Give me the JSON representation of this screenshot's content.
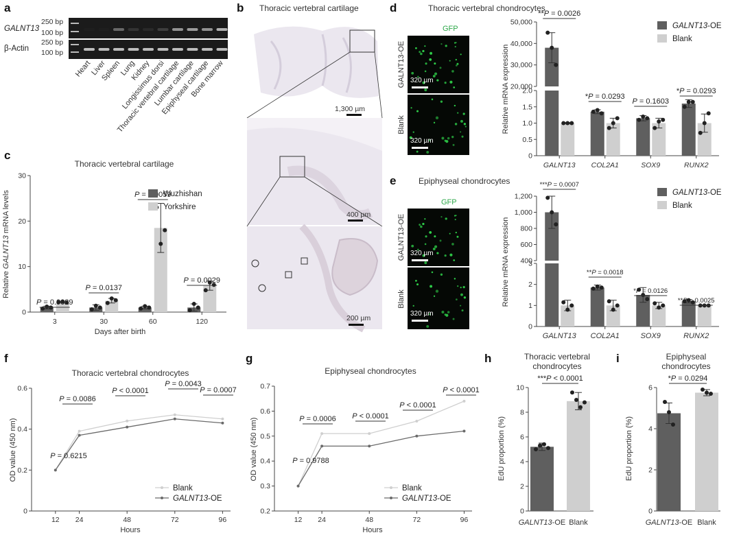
{
  "colors": {
    "dark": "#5f5f5f",
    "light": "#cfcfcf",
    "gfp": "#2fd24a"
  },
  "panel_a": {
    "label": "a",
    "gene_label": "GALNT13",
    "actin_label": "β-Actin",
    "bp_upper": "250 bp",
    "bp_lower": "100 bp",
    "tissues": [
      "Heart",
      "Liver",
      "Spleen",
      "Lung",
      "Kidney",
      "Longissimus dorsi",
      "Thoracic vertebral cartilage",
      "Lumbar cartilage",
      "Epiphyseal cartilage",
      "Bone marrow"
    ],
    "galnt13_intensity": [
      0,
      0,
      0.35,
      0.1,
      0.05,
      0.15,
      0.55,
      0.6,
      0.55,
      0.7
    ],
    "actin_intensity": [
      0.75,
      0.75,
      0.75,
      0.75,
      0.75,
      0.75,
      0.75,
      0.75,
      0.75,
      0.75
    ]
  },
  "panel_b": {
    "label": "b",
    "title": "Thoracic vertebral cartilage",
    "scale1": "1,300 µm",
    "scale2": "400 µm",
    "scale3": "200 µm"
  },
  "panel_d": {
    "label": "d",
    "title": "Thoracic vertebral chondrocytes",
    "gfp_label": "GFP",
    "row1": "GALNT13-OE",
    "row2": "Blank",
    "scale": "320 µm"
  },
  "panel_e": {
    "label": "e",
    "title": "Epiphyseal chondrocytes",
    "gfp_label": "GFP",
    "row1": "GALNT13-OE",
    "row2": "Blank",
    "scale": "320 µm"
  },
  "chart_data": [
    {
      "id": "c",
      "label": "c",
      "type": "bar",
      "title": "Thoracic vertebral cartilage",
      "xlabel": "Days after birth",
      "ylabel_pre": "Relative ",
      "ylabel_it": "GALNT13",
      "ylabel_post": " mRNA levels",
      "categories": [
        "3",
        "30",
        "60",
        "120"
      ],
      "ylim": [
        0,
        30
      ],
      "yticks": [
        0,
        10,
        20,
        30
      ],
      "series": [
        {
          "name": "Wuzhishan",
          "values": [
            1.0,
            1.0,
            1.0,
            1.0
          ],
          "err": [
            0.3,
            0.6,
            0.3,
            0.8
          ],
          "points": [
            [
              0.8,
              1.2,
              1.0
            ],
            [
              0.6,
              1.4,
              1.0
            ],
            [
              0.8,
              1.3,
              1.0
            ],
            [
              0.4,
              1.8,
              1.0
            ]
          ]
        },
        {
          "name": "Yorkshire",
          "values": [
            2.2,
            2.5,
            18.5,
            5.8
          ],
          "err": [
            0.2,
            0.5,
            5.4,
            1.0
          ],
          "points": [
            [
              2.2,
              2.3,
              2.1
            ],
            [
              2.0,
              3.0,
              2.6
            ],
            [
              23.0,
              15.0,
              18.0
            ],
            [
              4.8,
              6.5,
              6.0
            ]
          ]
        }
      ],
      "annotations": [
        "P = 0.0029",
        "P = 0.0137",
        "P = 0.0059",
        "P = 0.0029"
      ]
    },
    {
      "id": "d_chart",
      "type": "bar",
      "broken_axis": true,
      "ylabel": "Relative mRNA expression",
      "categories": [
        "GALNT13",
        "COL2A1",
        "SOX9",
        "RUNX2"
      ],
      "upper_ylim": [
        20000,
        50000
      ],
      "upper_yticks": [
        "20,000",
        "30,000",
        "40,000",
        "50,000"
      ],
      "lower_ylim": [
        0,
        2.0
      ],
      "lower_yticks": [
        "0",
        "0.5",
        "1.0",
        "1.5",
        "2.0"
      ],
      "series": [
        {
          "name": "GALNT13-OE",
          "values": [
            38000,
            1.35,
            1.15,
            1.6
          ],
          "err": [
            7000,
            0.06,
            0.08,
            0.12
          ],
          "points": [
            [
              45000,
              38000,
              30000
            ],
            [
              1.35,
              1.4,
              1.3
            ],
            [
              1.1,
              1.2,
              1.15
            ],
            [
              1.5,
              1.65,
              1.65
            ]
          ]
        },
        {
          "name": "Blank",
          "values": [
            1.0,
            1.0,
            1.0,
            1.0
          ],
          "err": [
            0.02,
            0.15,
            0.15,
            0.28
          ],
          "points": [
            [
              1.0,
              1.0,
              1.0
            ],
            [
              0.85,
              1.0,
              1.15
            ],
            [
              0.85,
              1.05,
              1.1
            ],
            [
              0.7,
              1.0,
              1.3
            ]
          ]
        }
      ],
      "annotations": [
        "**P = 0.0026",
        "*P = 0.0293",
        "P = 0.1603",
        "*P = 0.0293"
      ]
    },
    {
      "id": "e_chart",
      "type": "bar",
      "broken_axis": true,
      "ylabel": "Relative mRNA expression",
      "categories": [
        "GALNT13",
        "COL2A1",
        "SOX9",
        "RUNX2"
      ],
      "upper_ylim": [
        400,
        1200
      ],
      "upper_yticks": [
        "400",
        "600",
        "800",
        "1,000",
        "1,200"
      ],
      "lower_ylim": [
        0,
        3
      ],
      "lower_yticks": [
        "0",
        "1",
        "2",
        "3"
      ],
      "series": [
        {
          "name": "GALNT13-OE",
          "values": [
            1000,
            1.85,
            1.5,
            1.2
          ],
          "err": [
            200,
            0.12,
            0.35,
            0.08
          ],
          "points": [
            [
              1180,
              1000,
              850
            ],
            [
              1.8,
              1.9,
              1.85
            ],
            [
              1.75,
              1.5,
              1.3
            ],
            [
              1.2,
              1.25,
              1.15
            ]
          ]
        },
        {
          "name": "Blank",
          "values": [
            1.0,
            1.0,
            1.0,
            1.0
          ],
          "err": [
            0.25,
            0.25,
            0.15,
            0.02
          ],
          "points": [
            [
              1.15,
              0.8,
              1.0
            ],
            [
              1.2,
              0.8,
              1.0
            ],
            [
              1.1,
              0.9,
              1.0
            ],
            [
              1.0,
              1.0,
              1.0
            ]
          ]
        }
      ],
      "annotations": [
        "***P = 0.0007",
        "**P = 0.0018",
        "*P = 0.0126",
        "**P = 0.0025"
      ]
    },
    {
      "id": "f",
      "label": "f",
      "type": "line",
      "title": "Thoracic vertebral chondrocytes",
      "xlabel": "Hours",
      "ylabel": "OD value (450 nm)",
      "x": [
        12,
        24,
        48,
        72,
        96
      ],
      "ylim": [
        0,
        0.6
      ],
      "yticks": [
        "0",
        "0.2",
        "0.4",
        "0.6"
      ],
      "series": [
        {
          "name": "Blank",
          "values": [
            0.2,
            0.39,
            0.44,
            0.47,
            0.45
          ]
        },
        {
          "name": "GALNT13-OE",
          "values": [
            0.2,
            0.37,
            0.41,
            0.45,
            0.43
          ]
        }
      ],
      "annotations": [
        "P = 0.6215",
        "P = 0.0086",
        "P < 0.0001",
        "P = 0.0043",
        "P = 0.0007"
      ]
    },
    {
      "id": "g",
      "label": "g",
      "type": "line",
      "title": "Epiphyseal chondrocytes",
      "xlabel": "Hours",
      "ylabel": "OD value (450 nm)",
      "x": [
        12,
        24,
        48,
        72,
        96
      ],
      "ylim": [
        0.2,
        0.7
      ],
      "yticks": [
        "0.2",
        "0.3",
        "0.4",
        "0.5",
        "0.6",
        "0.7"
      ],
      "series": [
        {
          "name": "Blank",
          "values": [
            0.3,
            0.51,
            0.51,
            0.56,
            0.64
          ]
        },
        {
          "name": "GALNT13-OE",
          "values": [
            0.3,
            0.46,
            0.46,
            0.5,
            0.52
          ]
        }
      ],
      "annotations": [
        "P = 0.9788",
        "P = 0.0006",
        "P < 0.0001",
        "P < 0.0001",
        "P < 0.0001"
      ]
    },
    {
      "id": "h",
      "label": "h",
      "type": "bar",
      "title_l1": "Thoracic vertebral",
      "title_l2": "chondrocytes",
      "ylabel": "EdU proportion (%)",
      "categories": [
        "GALNT13-OE",
        "Blank"
      ],
      "ylim": [
        0,
        10
      ],
      "yticks": [
        "0",
        "2",
        "4",
        "6",
        "8",
        "10"
      ],
      "values": [
        5.2,
        8.9
      ],
      "err": [
        0.3,
        0.7
      ],
      "points": [
        [
          5.0,
          5.3,
          5.4,
          5.1
        ],
        [
          9.6,
          9.0,
          8.4,
          8.8
        ]
      ],
      "annotation": "***P < 0.0001"
    },
    {
      "id": "i",
      "label": "i",
      "type": "bar",
      "title_l1": "Epiphyseal",
      "title_l2": "chondrocytes",
      "ylabel": "EdU proportion (%)",
      "categories": [
        "GALNT13-OE",
        "Blank"
      ],
      "ylim": [
        0,
        6
      ],
      "yticks": [
        "0",
        "2",
        "4",
        "6"
      ],
      "values": [
        4.75,
        5.75
      ],
      "err": [
        0.5,
        0.15
      ],
      "points": [
        [
          5.3,
          4.8,
          4.2
        ],
        [
          5.9,
          5.75,
          5.7
        ]
      ],
      "annotation": "*P = 0.0294"
    }
  ]
}
